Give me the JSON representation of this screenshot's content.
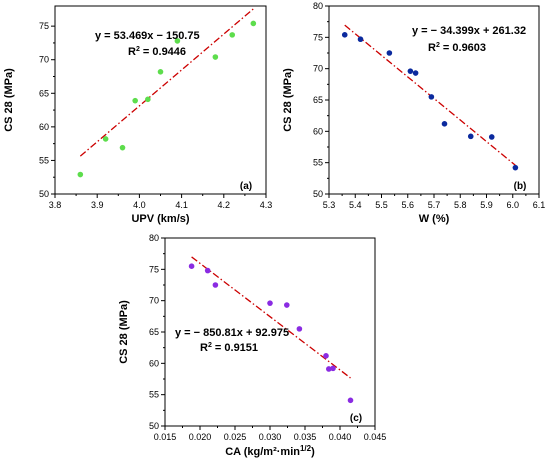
{
  "chart_data": [
    {
      "type": "scatter",
      "panel_label": "(a)",
      "xlabel": "UPV (km/s)",
      "ylabel": "CS 28 (MPa)",
      "xlim": [
        3.8,
        4.3
      ],
      "ylim": [
        50,
        78
      ],
      "xticks": [
        "3.8",
        "3.9",
        "4.0",
        "4.1",
        "4.2",
        "4.3"
      ],
      "yticks": [
        "50",
        "55",
        "60",
        "65",
        "70",
        "75"
      ],
      "point_color": "#5ddd4c",
      "fit_color": "#cc0000",
      "equation": "y = 53.469x − 150.75",
      "r2_label": "R",
      "r2_value": " = 0.9446",
      "points": [
        {
          "x": 3.86,
          "y": 52.9
        },
        {
          "x": 3.92,
          "y": 58.2
        },
        {
          "x": 3.96,
          "y": 56.9
        },
        {
          "x": 3.99,
          "y": 63.9
        },
        {
          "x": 4.02,
          "y": 64.1
        },
        {
          "x": 4.05,
          "y": 68.2
        },
        {
          "x": 4.09,
          "y": 72.8
        },
        {
          "x": 4.18,
          "y": 70.4
        },
        {
          "x": 4.22,
          "y": 73.7
        },
        {
          "x": 4.27,
          "y": 75.4
        }
      ],
      "fit": {
        "slope": 53.469,
        "intercept": -150.75,
        "x_range": [
          3.86,
          4.27
        ]
      }
    },
    {
      "type": "scatter",
      "panel_label": "(b)",
      "xlabel": "W (%)",
      "ylabel": "CS 28 (MPa)",
      "xlim": [
        5.3,
        6.1
      ],
      "ylim": [
        50,
        80
      ],
      "xticks": [
        "5.3",
        "5.4",
        "5.5",
        "5.6",
        "5.7",
        "5.8",
        "5.9",
        "6.0",
        "6.1"
      ],
      "yticks": [
        "50",
        "55",
        "60",
        "65",
        "70",
        "75",
        "80"
      ],
      "point_color": "#0b2a9e",
      "fit_color": "#cc0000",
      "equation": "y = − 34.399x + 261.32",
      "r2_label": "R",
      "r2_value": " = 0.9603",
      "points": [
        {
          "x": 5.36,
          "y": 75.4
        },
        {
          "x": 5.42,
          "y": 74.7
        },
        {
          "x": 5.53,
          "y": 72.5
        },
        {
          "x": 5.61,
          "y": 69.6
        },
        {
          "x": 5.63,
          "y": 69.3
        },
        {
          "x": 5.69,
          "y": 65.5
        },
        {
          "x": 5.74,
          "y": 61.2
        },
        {
          "x": 5.84,
          "y": 59.2
        },
        {
          "x": 5.92,
          "y": 59.1
        },
        {
          "x": 6.01,
          "y": 54.2
        }
      ],
      "fit": {
        "slope": -34.399,
        "intercept": 261.32,
        "x_range": [
          5.36,
          6.01
        ]
      }
    },
    {
      "type": "scatter",
      "panel_label": "(c)",
      "xlabel": "CA (kg/m²·min",
      "xlabel_sup": "1/2",
      "xlabel_end": ")",
      "ylabel": "CS 28 (MPa)",
      "xlim": [
        0.015,
        0.045
      ],
      "ylim": [
        50,
        80
      ],
      "xticks": [
        "0.015",
        "0.020",
        "0.025",
        "0.030",
        "0.035",
        "0.040",
        "0.045"
      ],
      "yticks": [
        "50",
        "55",
        "60",
        "65",
        "70",
        "75",
        "80"
      ],
      "point_color": "#8a2be2",
      "fit_color": "#cc0000",
      "equation": "y = − 850.81x + 92.975",
      "r2_label": "R",
      "r2_value": " = 0.9151",
      "points": [
        {
          "x": 0.0188,
          "y": 75.5
        },
        {
          "x": 0.0211,
          "y": 74.8
        },
        {
          "x": 0.0222,
          "y": 72.5
        },
        {
          "x": 0.03,
          "y": 69.6
        },
        {
          "x": 0.0324,
          "y": 69.3
        },
        {
          "x": 0.0342,
          "y": 65.5
        },
        {
          "x": 0.038,
          "y": 61.2
        },
        {
          "x": 0.0384,
          "y": 59.1
        },
        {
          "x": 0.039,
          "y": 59.2
        },
        {
          "x": 0.0415,
          "y": 54.1
        }
      ],
      "fit": {
        "slope": -850.81,
        "intercept": 92.975,
        "x_range": [
          0.0188,
          0.0415
        ]
      }
    }
  ]
}
